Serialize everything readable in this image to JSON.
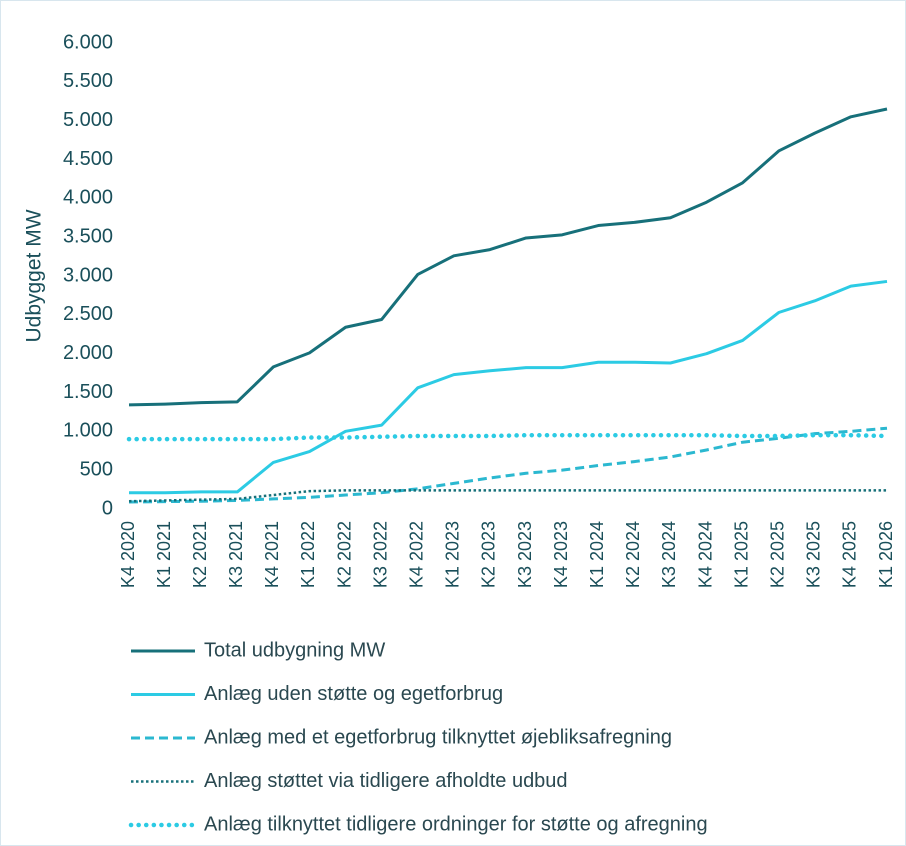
{
  "chart_data": {
    "type": "line",
    "ylabel": "Udbygget MW",
    "categories": [
      "K4 2020",
      "K1 2021",
      "K2 2021",
      "K3 2021",
      "K4 2021",
      "K1 2022",
      "K2 2022",
      "K3 2022",
      "K4 2022",
      "K1 2023",
      "K2 2023",
      "K3 2023",
      "K4 2023",
      "K1 2024",
      "K2 2024",
      "K3 2024",
      "K4 2024",
      "K1 2025",
      "K2 2025",
      "K3 2025",
      "K4 2025",
      "K1 2026"
    ],
    "ylim": [
      0,
      6000
    ],
    "yticks": [
      0,
      {
        "value": 500,
        "label": "500"
      },
      {
        "value": 1000,
        "label": "1.000"
      },
      {
        "value": 1500,
        "label": "1.500"
      },
      {
        "value": 2000,
        "label": "2.000"
      },
      {
        "value": 2500,
        "label": "2.500"
      },
      {
        "value": 3000,
        "label": "3.000"
      },
      {
        "value": 3500,
        "label": "3.500"
      },
      {
        "value": 4000,
        "label": "4.000"
      },
      {
        "value": 4500,
        "label": "4.500"
      },
      {
        "value": 5000,
        "label": "5.000"
      },
      {
        "value": 5500,
        "label": "5.500"
      },
      {
        "value": 6000,
        "label": "6.000"
      }
    ],
    "grid": false,
    "legend": "bottom",
    "series": [
      {
        "name": "Total udbygning MW",
        "color": "#17707a",
        "style": "solid",
        "values": [
          1340,
          1350,
          1370,
          1380,
          1830,
          2010,
          2340,
          2440,
          3020,
          3260,
          3340,
          3490,
          3530,
          3650,
          3690,
          3750,
          3950,
          4200,
          4610,
          4840,
          5050,
          5150
        ]
      },
      {
        "name": "Anlæg uden støtte og egetforbrug",
        "color": "#2ccbe4",
        "style": "solid",
        "values": [
          210,
          210,
          220,
          220,
          600,
          740,
          1000,
          1080,
          1560,
          1730,
          1780,
          1820,
          1820,
          1890,
          1890,
          1880,
          2000,
          2170,
          2530,
          2680,
          2870,
          2930
        ]
      },
      {
        "name": "Anlæg med et egetforbrug tilknyttet øjebliksafregning",
        "color": "#2bb8d0",
        "style": "dashed",
        "values": [
          90,
          95,
          100,
          110,
          130,
          150,
          180,
          210,
          260,
          330,
          400,
          460,
          500,
          560,
          610,
          670,
          760,
          860,
          910,
          970,
          1000,
          1040
        ]
      },
      {
        "name": "Anlæg støttet via tidligere afholdte udbud",
        "color": "#17707a",
        "style": "dotted",
        "values": [
          100,
          110,
          120,
          130,
          180,
          230,
          240,
          240,
          240,
          240,
          240,
          240,
          240,
          240,
          240,
          240,
          240,
          240,
          240,
          240,
          240,
          240
        ]
      },
      {
        "name": "Anlæg tilknyttet tidligere ordninger for støtte og afregning",
        "color": "#2ccbe4",
        "style": "round-dotted",
        "values": [
          900,
          900,
          900,
          900,
          900,
          920,
          920,
          930,
          940,
          940,
          940,
          950,
          950,
          950,
          950,
          950,
          950,
          940,
          940,
          950,
          950,
          940
        ]
      }
    ]
  }
}
